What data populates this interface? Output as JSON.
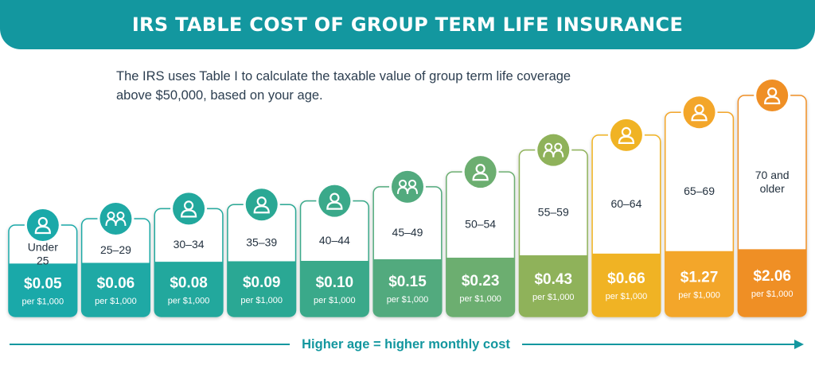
{
  "header": {
    "title": "IRS TABLE COST OF GROUP TERM LIFE INSURANCE"
  },
  "intro": {
    "text": "The IRS uses Table I to calculate the taxable value of group term life coverage above $50,000, based on your age."
  },
  "footer": {
    "text": "Higher age = higher monthly cost"
  },
  "chart_data": {
    "type": "bar",
    "title": "IRS TABLE COST OF GROUP TERM LIFE INSURANCE",
    "categories": [
      "Under 25",
      "25–29",
      "30–34",
      "35–39",
      "40–44",
      "45–49",
      "50–54",
      "55–59",
      "60–64",
      "65–69",
      "70 and older"
    ],
    "values": [
      0.05,
      0.06,
      0.08,
      0.09,
      0.1,
      0.15,
      0.23,
      0.43,
      0.66,
      1.27,
      2.06
    ],
    "value_labels": [
      "$0.05",
      "$0.06",
      "$0.08",
      "$0.09",
      "$0.10",
      "$0.15",
      "$0.23",
      "$0.43",
      "$0.66",
      "$1.27",
      "$2.06"
    ],
    "unit_label": "per $1,000",
    "icons": [
      "person-icon",
      "group-icon",
      "person-icon",
      "person-icon",
      "person-icon",
      "group-icon",
      "person-icon",
      "group-icon",
      "person-icon",
      "person-icon",
      "person-icon"
    ],
    "colors": [
      "#1aa9a9",
      "#1fa9a5",
      "#22a89d",
      "#2aa894",
      "#3aa98a",
      "#52aa7e",
      "#6cae70",
      "#8fb25a",
      "#f0b324",
      "#f3a62a",
      "#ef8f25"
    ],
    "xlabel": "",
    "ylabel": "",
    "legend": "none",
    "grid": false
  }
}
